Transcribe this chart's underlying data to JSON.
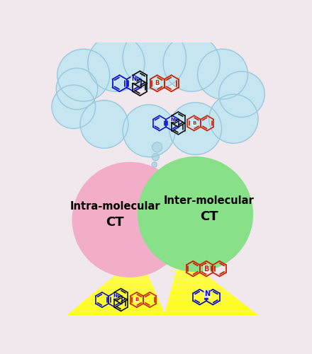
{
  "bg_color": "#f0e8ec",
  "cloud_color": "#c5e5f0",
  "cloud_edge": "#98c8dc",
  "pink_color": "#f2aec8",
  "green_color": "#88e088",
  "yellow_color": "#ffff44",
  "yellow_light": "#ffffe0",
  "bubble_color": "#b8d8e8",
  "blue": "#1010cc",
  "red": "#cc2200",
  "black": "#111111",
  "intra_text1": "Intra-molecular",
  "intra_text2": "CT",
  "inter_text1": "Inter-molecular",
  "inter_text2": "CT"
}
